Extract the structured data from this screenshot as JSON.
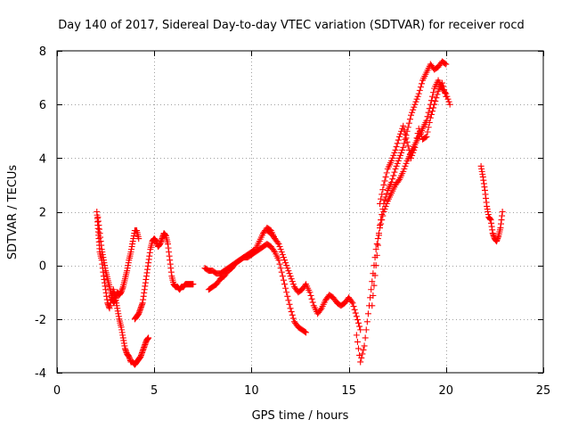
{
  "chart_data": {
    "type": "scatter",
    "title": "Day 140 of 2017, Sidereal Day-to-day VTEC variation (SDTVAR) for receiver rocd",
    "xlabel": "GPS time / hours",
    "ylabel": "SDTVAR / TECUs",
    "xlim": [
      0,
      25
    ],
    "ylim": [
      -4,
      8
    ],
    "xticks": [
      0,
      5,
      10,
      15,
      20,
      25
    ],
    "yticks": [
      -4,
      -2,
      0,
      2,
      4,
      6,
      8
    ],
    "grid": true,
    "marker": "plus",
    "color": "#ff0000",
    "segments": [
      {
        "x": [
          2.05,
          2.1,
          2.15,
          2.2,
          2.3,
          2.4,
          2.5,
          2.6,
          2.7,
          2.8,
          2.9,
          3.0,
          3.1,
          3.2,
          3.3,
          3.4,
          3.5,
          3.6,
          3.7,
          3.8,
          3.9,
          4.0,
          4.1,
          4.2,
          4.3,
          4.4,
          4.5,
          4.6,
          4.7
        ],
        "y": [
          2.0,
          1.5,
          1.0,
          0.5,
          0.2,
          -0.4,
          -0.9,
          -1.4,
          -1.6,
          -1.2,
          -0.9,
          -1.2,
          -1.6,
          -2.0,
          -2.3,
          -2.7,
          -3.1,
          -3.3,
          -3.4,
          -3.6,
          -3.6,
          -3.7,
          -3.6,
          -3.5,
          -3.4,
          -3.2,
          -3.0,
          -2.8,
          -2.7
        ]
      },
      {
        "x": [
          2.1,
          2.2,
          2.3,
          2.4,
          2.5,
          2.6,
          2.7,
          2.8,
          2.9,
          3.0,
          3.1,
          3.2,
          3.3,
          3.4,
          3.5,
          3.6,
          3.7,
          3.8,
          3.9,
          4.0,
          4.1,
          4.2
        ],
        "y": [
          1.8,
          1.2,
          0.6,
          0.2,
          -0.2,
          -0.5,
          -0.8,
          -1.1,
          -1.4,
          -1.3,
          -1.0,
          -1.1,
          -1.0,
          -0.8,
          -0.5,
          -0.2,
          0.2,
          0.5,
          0.9,
          1.3,
          1.3,
          1.0
        ]
      },
      {
        "x": [
          4.0,
          4.1,
          4.2,
          4.3,
          4.4,
          4.5,
          4.6,
          4.7,
          4.8,
          4.9,
          5.0,
          5.1,
          5.2,
          5.3,
          5.4,
          5.5,
          5.6,
          5.7,
          5.8,
          5.9,
          6.0,
          6.1,
          6.2,
          6.3,
          6.4,
          6.5,
          6.6,
          6.7,
          6.8,
          6.9,
          7.0
        ],
        "y": [
          -2.0,
          -1.9,
          -1.8,
          -1.6,
          -1.4,
          -0.9,
          -0.4,
          0.1,
          0.6,
          0.9,
          1.0,
          0.9,
          0.7,
          0.8,
          1.0,
          1.2,
          1.1,
          0.8,
          0.2,
          -0.4,
          -0.7,
          -0.8,
          -0.8,
          -0.9,
          -0.8,
          -0.8,
          -0.7,
          -0.7,
          -0.7,
          -0.7,
          -0.7
        ]
      },
      {
        "x": [
          7.6,
          7.8,
          8.0,
          8.2,
          8.4,
          8.6,
          8.8,
          9.0,
          9.2,
          9.4,
          9.6,
          9.8,
          10.0,
          10.2,
          10.4,
          10.6,
          10.8,
          11.0,
          11.2
        ],
        "y": [
          -0.1,
          -0.2,
          -0.2,
          -0.3,
          -0.3,
          -0.2,
          -0.1,
          0.0,
          0.1,
          0.2,
          0.3,
          0.4,
          0.5,
          0.6,
          0.9,
          1.2,
          1.4,
          1.3,
          1.0
        ]
      },
      {
        "x": [
          7.8,
          8.0,
          8.2,
          8.4,
          8.6,
          8.8,
          9.0,
          9.2,
          9.4,
          9.6,
          9.8,
          10.0,
          10.2,
          10.4,
          10.6,
          10.8,
          11.0,
          11.2,
          11.4,
          11.6,
          11.8,
          12.0,
          12.2,
          12.4,
          12.6,
          12.8
        ],
        "y": [
          -0.9,
          -0.8,
          -0.7,
          -0.5,
          -0.4,
          -0.2,
          -0.1,
          0.1,
          0.2,
          0.3,
          0.3,
          0.4,
          0.5,
          0.6,
          0.7,
          0.8,
          0.7,
          0.5,
          0.2,
          -0.4,
          -1.0,
          -1.6,
          -2.1,
          -2.3,
          -2.4,
          -2.5
        ]
      },
      {
        "x": [
          10.8,
          11.0,
          11.2,
          11.4,
          11.6,
          11.8,
          12.0,
          12.2,
          12.4,
          12.6,
          12.8,
          13.0,
          13.2,
          13.4,
          13.6,
          13.8,
          14.0,
          14.2,
          14.4,
          14.6,
          14.8,
          15.0,
          15.2,
          15.4,
          15.6
        ],
        "y": [
          1.3,
          1.2,
          1.0,
          0.8,
          0.4,
          0.0,
          -0.4,
          -0.8,
          -1.0,
          -0.9,
          -0.7,
          -1.0,
          -1.5,
          -1.8,
          -1.6,
          -1.3,
          -1.1,
          -1.2,
          -1.4,
          -1.5,
          -1.4,
          -1.2,
          -1.4,
          -1.9,
          -2.4
        ]
      },
      {
        "x": [
          15.4,
          15.6,
          15.8,
          16.0,
          16.2,
          16.4,
          16.6,
          16.8,
          17.0,
          17.2,
          17.4,
          17.6,
          17.8,
          18.0,
          18.2,
          18.4,
          18.6,
          18.8,
          19.0,
          19.2,
          19.4,
          19.6,
          19.8,
          20.0,
          20.2
        ],
        "y": [
          -2.6,
          -3.6,
          -3.0,
          -1.8,
          -0.6,
          0.6,
          1.4,
          2.0,
          2.4,
          2.7,
          3.0,
          3.2,
          3.5,
          3.9,
          4.2,
          4.5,
          4.8,
          5.1,
          5.4,
          6.0,
          6.6,
          6.9,
          6.6,
          6.4,
          6.0
        ]
      },
      {
        "x": [
          16.2,
          16.4,
          16.6,
          16.8,
          17.0,
          17.2,
          17.4,
          17.6,
          17.8,
          18.0,
          18.2,
          18.4,
          18.6,
          18.8,
          19.0,
          19.2,
          19.4,
          19.6,
          19.8,
          20.0
        ],
        "y": [
          -1.5,
          0.0,
          1.5,
          2.3,
          2.8,
          3.1,
          3.6,
          4.0,
          4.4,
          5.0,
          5.6,
          6.0,
          6.4,
          6.9,
          7.2,
          7.5,
          7.3,
          7.4,
          7.6,
          7.5
        ]
      },
      {
        "x": [
          16.6,
          16.8,
          17.0,
          17.2,
          17.4,
          17.6,
          17.8,
          18.0,
          18.2,
          18.4,
          18.6,
          18.8,
          19.0,
          19.2,
          19.4,
          19.6,
          19.8,
          20.0
        ],
        "y": [
          2.3,
          3.0,
          3.6,
          3.9,
          4.3,
          4.8,
          5.2,
          4.6,
          4.0,
          4.4,
          5.1,
          4.7,
          4.8,
          5.5,
          6.0,
          6.5,
          6.8,
          6.3
        ]
      },
      {
        "x": [
          21.8,
          21.9,
          22.0,
          22.1,
          22.2,
          22.3,
          22.4,
          22.5,
          22.6,
          22.7,
          22.8,
          22.9
        ],
        "y": [
          3.7,
          3.3,
          2.8,
          2.2,
          1.8,
          1.7,
          1.2,
          1.0,
          0.9,
          1.1,
          1.4,
          2.0
        ]
      }
    ]
  }
}
